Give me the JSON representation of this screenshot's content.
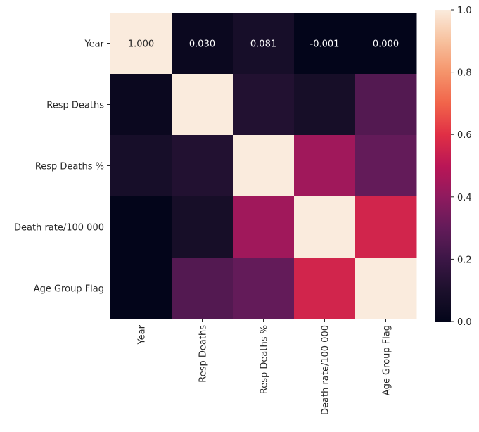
{
  "chart_data": {
    "type": "heatmap",
    "title": "",
    "xlabel": "",
    "ylabel": "",
    "x_categories": [
      "Year",
      "Resp Deaths",
      "Resp Deaths %",
      "Death rate/100 000",
      "Age Group Flag"
    ],
    "y_categories": [
      "Year",
      "Resp Deaths",
      "Resp Deaths %",
      "Death rate/100 000",
      "Age Group Flag"
    ],
    "values": [
      [
        1.0,
        0.03,
        0.081,
        -0.001,
        0.0
      ],
      [
        0.03,
        1.0,
        0.12,
        0.08,
        0.26
      ],
      [
        0.081,
        0.12,
        1.0,
        0.44,
        0.3
      ],
      [
        -0.001,
        0.08,
        0.44,
        1.0,
        0.56
      ],
      [
        0.0,
        0.26,
        0.3,
        0.56,
        1.0
      ]
    ],
    "annotations": [
      {
        "row": 0,
        "col": 0,
        "text": "1.000"
      },
      {
        "row": 0,
        "col": 1,
        "text": "0.030"
      },
      {
        "row": 0,
        "col": 2,
        "text": "0.081"
      },
      {
        "row": 0,
        "col": 3,
        "text": "-0.001"
      },
      {
        "row": 0,
        "col": 4,
        "text": "0.000"
      }
    ],
    "colorbar": {
      "min": 0.0,
      "max": 1.0,
      "ticks": [
        0.0,
        0.2,
        0.4,
        0.6,
        0.8,
        1.0
      ],
      "tick_labels": [
        "0.0",
        "0.2",
        "0.4",
        "0.6",
        "0.8",
        "1.0"
      ]
    },
    "colormap": "rocket",
    "grid": false,
    "legend": "colorbar-right"
  }
}
